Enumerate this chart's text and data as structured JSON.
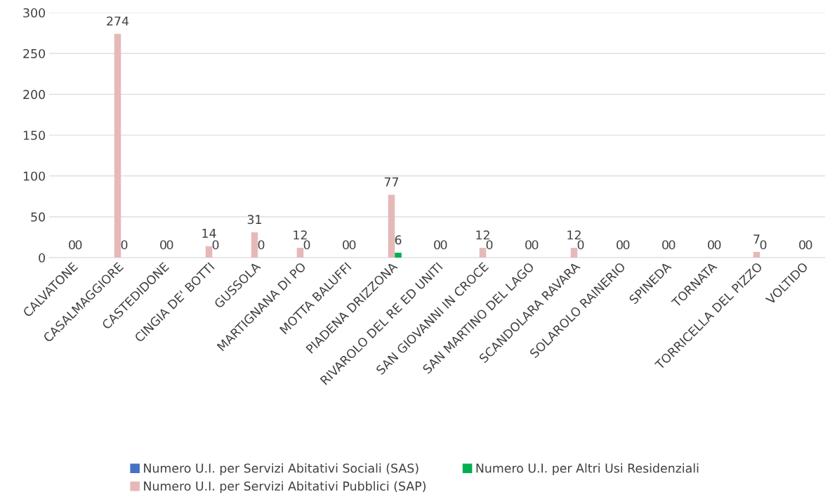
{
  "chart_data": {
    "type": "bar",
    "categories": [
      "CALVATONE",
      "CASALMAGGIORE",
      "CASTEDIDONE",
      "CINGIA DE' BOTTI",
      "GUSSOLA",
      "MARTIGNANA DI PO",
      "MOTTA BALUFFI",
      "PIADENA DRIZZONA",
      "RIVAROLO DEL RE ED UNITI",
      "SAN GIOVANNI IN CROCE",
      "SAN MARTINO DEL LAGO",
      "SCANDOLARA RAVARA",
      "SOLAROLO RAINERIO",
      "SPINEDA",
      "TORNATA",
      "TORRICELLA DEL PIZZO",
      "VOLTIDO"
    ],
    "series": [
      {
        "name": "Numero U.I. per Servizi Abitativi Sociali (SAS)",
        "color": "#4472c4",
        "values": [
          0,
          0,
          0,
          0,
          0,
          0,
          0,
          0,
          0,
          0,
          0,
          0,
          0,
          0,
          0,
          0,
          0
        ]
      },
      {
        "name": "Numero U.I. per Servizi Abitativi Pubblici (SAP)",
        "color": "#e6b9b8",
        "values": [
          0,
          274,
          0,
          14,
          31,
          12,
          0,
          77,
          0,
          12,
          0,
          12,
          0,
          0,
          0,
          7,
          0
        ],
        "value_labels": [
          "0",
          "274",
          "0",
          "14",
          "31",
          "12",
          "0",
          "77",
          "0",
          "12",
          "0",
          "12",
          "0",
          "0",
          "0",
          "7",
          "0"
        ]
      },
      {
        "name": "Numero U.I. per Altri Usi Residenziali",
        "color": "#00b050",
        "values": [
          0,
          0,
          0,
          0,
          0,
          0,
          0,
          6,
          0,
          0,
          0,
          0,
          0,
          0,
          0,
          0,
          0
        ],
        "value_labels": [
          "0",
          "0",
          "0",
          "0",
          "0",
          "0",
          "0",
          "6",
          "0",
          "0",
          "0",
          "0",
          "0",
          "0",
          "0",
          "0",
          "0"
        ]
      }
    ],
    "ylim": [
      0,
      300
    ],
    "yticks": [
      0,
      50,
      100,
      150,
      200,
      250,
      300
    ],
    "grid": "y",
    "legend": "bottom"
  }
}
